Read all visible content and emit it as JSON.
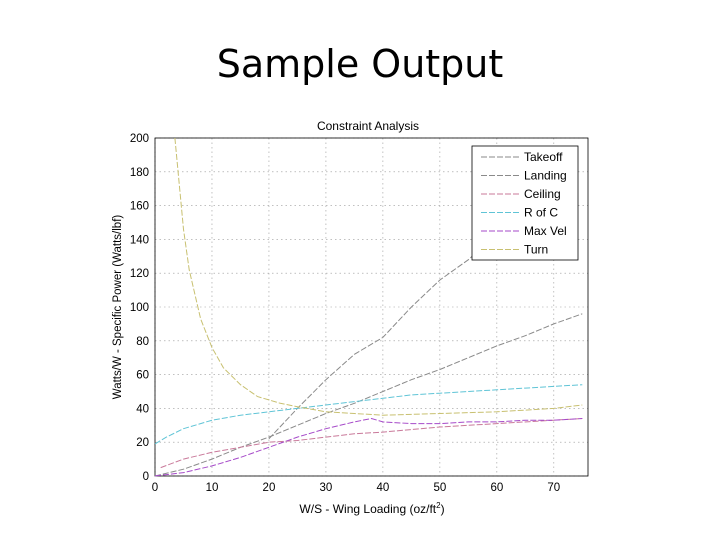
{
  "slide": {
    "title": "Sample Output"
  },
  "chart_data": {
    "type": "line",
    "title": "Constraint Analysis",
    "xlabel": "W/S - Wing Loading (oz/ft",
    "xlabel_sup": "2",
    "xlabel_close": ")",
    "ylabel": "Watts/W - Specific Power (Watts/lbf)",
    "xlim": [
      0,
      76
    ],
    "ylim": [
      0,
      200
    ],
    "xticks": [
      "0",
      "10",
      "20",
      "30",
      "40",
      "50",
      "60",
      "70"
    ],
    "yticks": [
      "0",
      "20",
      "40",
      "60",
      "80",
      "100",
      "120",
      "140",
      "160",
      "180",
      "200"
    ],
    "grid": true,
    "legend_position": "top-right",
    "series": [
      {
        "name": "Takeoff",
        "color": "#8a8a8a",
        "x": [
          0,
          5,
          10,
          15,
          20,
          25,
          30,
          35,
          40,
          45,
          50,
          55,
          60,
          65,
          70,
          75
        ],
        "y": [
          0,
          4,
          10,
          17,
          23,
          30,
          37,
          43,
          50,
          57,
          63,
          70,
          77,
          83,
          90,
          96
        ]
      },
      {
        "name": "Landing",
        "color": "#8a8a8a",
        "x": [
          20,
          25,
          30,
          35,
          40,
          45,
          50,
          55,
          60,
          65,
          68
        ],
        "y": [
          22,
          40,
          57,
          72,
          82,
          100,
          116,
          128,
          143,
          153,
          160
        ]
      },
      {
        "name": "Ceiling",
        "color": "#c9799a",
        "x": [
          1,
          5,
          10,
          15,
          20,
          25,
          30,
          35,
          40,
          50,
          60,
          70,
          75
        ],
        "y": [
          5,
          10,
          14,
          17,
          20,
          21,
          23,
          25,
          26,
          29,
          31,
          33,
          34
        ]
      },
      {
        "name": "R of C",
        "color": "#5fc4d6",
        "x": [
          0,
          2,
          5,
          10,
          15,
          20,
          25,
          30,
          35,
          40,
          45,
          50,
          55,
          60,
          65,
          70,
          75
        ],
        "y": [
          19,
          23,
          28,
          33,
          36,
          38,
          40,
          42,
          44,
          46,
          48,
          49,
          50,
          51,
          52,
          53,
          54
        ]
      },
      {
        "name": "Max Vel",
        "color": "#a64ac9",
        "x": [
          0,
          5,
          10,
          15,
          20,
          25,
          30,
          35,
          38,
          40,
          45,
          50,
          55,
          60,
          65,
          70,
          75
        ],
        "y": [
          0,
          2,
          6,
          11,
          17,
          23,
          28,
          32,
          34,
          32,
          31,
          31,
          32,
          32,
          33,
          33,
          34
        ]
      },
      {
        "name": "Turn",
        "color": "#c8c070",
        "x": [
          3.5,
          5,
          6,
          8,
          10,
          12,
          15,
          18,
          20,
          22,
          25,
          30,
          35,
          40,
          50,
          60,
          70,
          75
        ],
        "y": [
          200,
          146,
          122,
          93,
          76,
          64,
          54,
          47,
          45,
          43,
          41,
          38,
          37,
          36,
          37,
          38,
          40,
          42
        ]
      }
    ]
  }
}
